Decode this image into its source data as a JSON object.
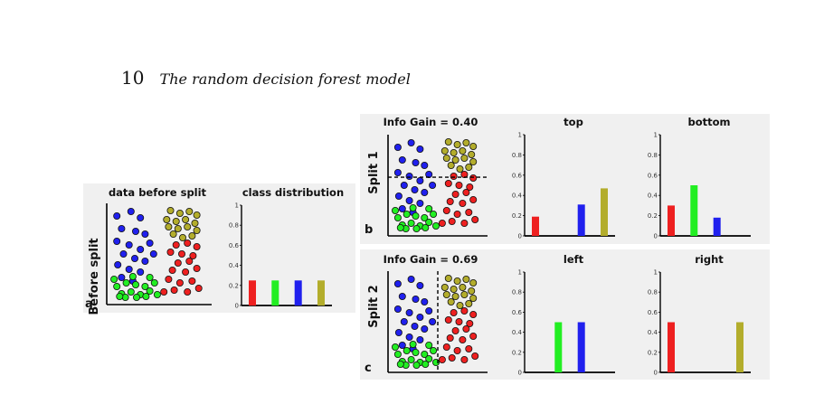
{
  "header": {
    "page_number": "10",
    "running_title": "The random decision forest model"
  },
  "colors": {
    "blue": "#2020ee",
    "red": "#ee2020",
    "green": "#22ee22",
    "olive": "#b3ad2c",
    "panel_bg": "#f0f0f0"
  },
  "figure": {
    "row_a": {
      "letter": "a",
      "side_label": "Before split",
      "scatter_title": "data before split",
      "histogram": {
        "title": "class distribution",
        "ticks": [
          "0",
          "0.2",
          "0.4",
          "0.6",
          "0.8",
          "1"
        ],
        "bars": [
          {
            "class": "red",
            "value": 0.25
          },
          {
            "class": "green",
            "value": 0.25
          },
          {
            "class": "blue",
            "value": 0.25
          },
          {
            "class": "olive",
            "value": 0.25
          }
        ]
      }
    },
    "row_b": {
      "letter": "b",
      "side_label": "Split 1",
      "scatter_title": "Info Gain = 0.40",
      "split_line": "horizontal",
      "hist_1": {
        "title": "top",
        "ticks": [
          "0",
          "0.2",
          "0.4",
          "0.6",
          "0.8",
          "1"
        ],
        "bars": [
          {
            "class": "red",
            "value": 0.19
          },
          {
            "class": "blue",
            "value": 0.31
          },
          {
            "class": "olive",
            "value": 0.47
          }
        ]
      },
      "hist_2": {
        "title": "bottom",
        "ticks": [
          "0",
          "0.2",
          "0.4",
          "0.6",
          "0.8",
          "1"
        ],
        "bars": [
          {
            "class": "red",
            "value": 0.3
          },
          {
            "class": "green",
            "value": 0.5
          },
          {
            "class": "blue",
            "value": 0.18
          }
        ]
      }
    },
    "row_c": {
      "letter": "c",
      "side_label": "Split 2",
      "scatter_title": "Info Gain = 0.69",
      "split_line": "vertical",
      "hist_1": {
        "title": "left",
        "ticks": [
          "0",
          "0.2",
          "0.4",
          "0.6",
          "0.8",
          "1"
        ],
        "bars": [
          {
            "class": "green",
            "value": 0.5
          },
          {
            "class": "blue",
            "value": 0.5
          }
        ]
      },
      "hist_2": {
        "title": "right",
        "ticks": [
          "0",
          "0.2",
          "0.4",
          "0.6",
          "0.8",
          "1"
        ],
        "bars": [
          {
            "class": "red",
            "value": 0.5
          },
          {
            "class": "olive",
            "value": 0.5
          }
        ]
      }
    }
  }
}
